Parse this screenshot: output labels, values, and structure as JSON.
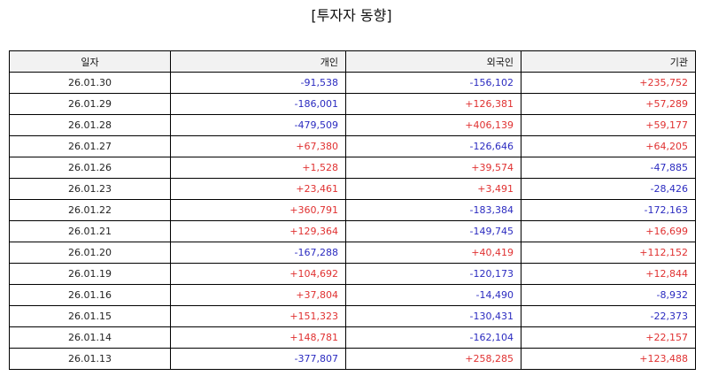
{
  "title": "[투자자 동향]",
  "colors": {
    "positive": "#e03131",
    "negative": "#2b2bc0",
    "header_bg": "#f2f2f2"
  },
  "table": {
    "headers": [
      "일자",
      "개인",
      "외국인",
      "기관"
    ],
    "rows": [
      [
        "26.01.30",
        "-91,538",
        "-156,102",
        "+235,752"
      ],
      [
        "26.01.29",
        "-186,001",
        "+126,381",
        "+57,289"
      ],
      [
        "26.01.28",
        "-479,509",
        "+406,139",
        "+59,177"
      ],
      [
        "26.01.27",
        "+67,380",
        "-126,646",
        "+64,205"
      ],
      [
        "26.01.26",
        "+1,528",
        "+39,574",
        "-47,885"
      ],
      [
        "26.01.23",
        "+23,461",
        "+3,491",
        "-28,426"
      ],
      [
        "26.01.22",
        "+360,791",
        "-183,384",
        "-172,163"
      ],
      [
        "26.01.21",
        "+129,364",
        "-149,745",
        "+16,699"
      ],
      [
        "26.01.20",
        "-167,288",
        "+40,419",
        "+112,152"
      ],
      [
        "26.01.19",
        "+104,692",
        "-120,173",
        "+12,844"
      ],
      [
        "26.01.16",
        "+37,804",
        "-14,490",
        "-8,932"
      ],
      [
        "26.01.15",
        "+151,323",
        "-130,431",
        "-22,373"
      ],
      [
        "26.01.14",
        "+148,781",
        "-162,104",
        "+22,157"
      ],
      [
        "26.01.13",
        "-377,807",
        "+258,285",
        "+123,488"
      ]
    ]
  }
}
